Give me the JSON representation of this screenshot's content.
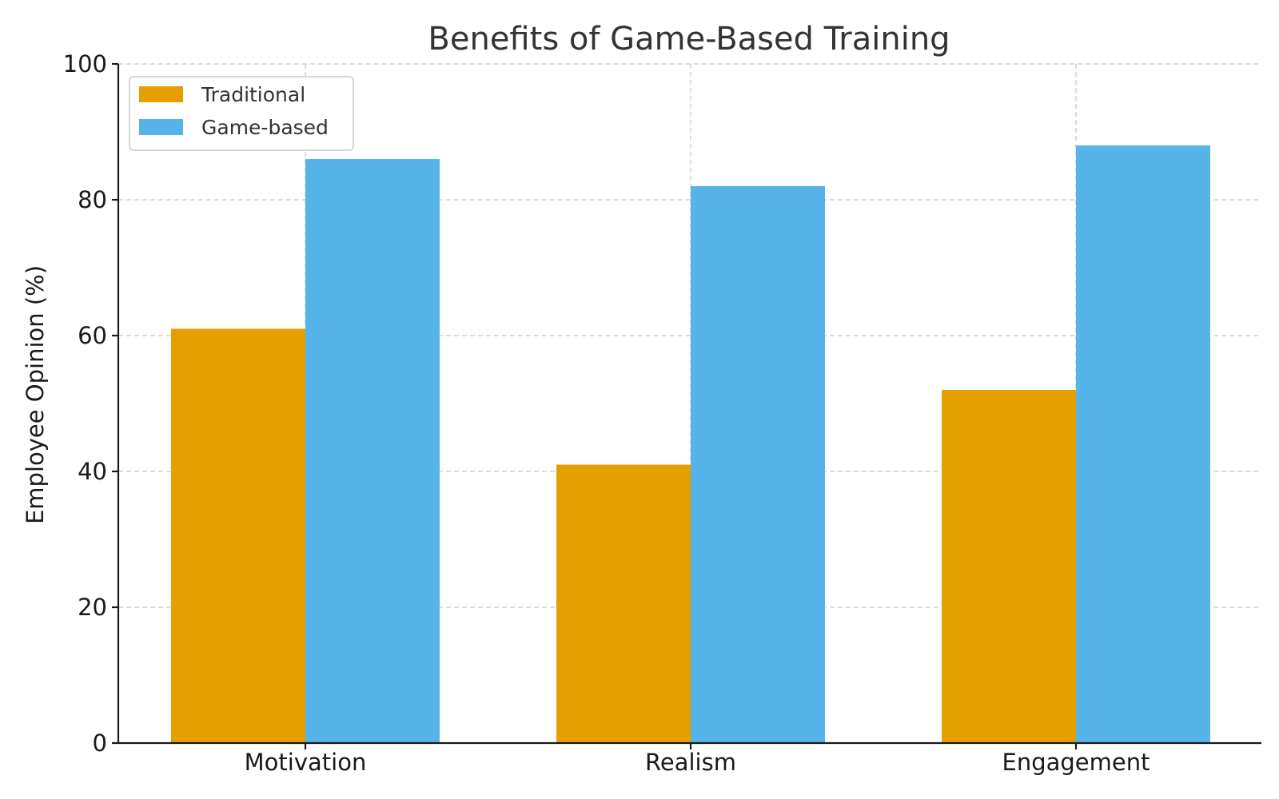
{
  "chart_data": {
    "type": "bar",
    "title": "Benefits of Game-Based Training",
    "xlabel": "",
    "ylabel": "Employee Opinion (%)",
    "ylim": [
      0,
      100
    ],
    "yticks": [
      0,
      20,
      40,
      60,
      80,
      100
    ],
    "categories": [
      "Motivation",
      "Realism",
      "Engagement"
    ],
    "series": [
      {
        "name": "Traditional",
        "color": "#E69F00",
        "values": [
          61,
          41,
          52
        ]
      },
      {
        "name": "Game-based",
        "color": "#56B4E9",
        "values": [
          86,
          82,
          88
        ]
      }
    ],
    "grid": true,
    "legend": {
      "position": "top-left"
    }
  }
}
